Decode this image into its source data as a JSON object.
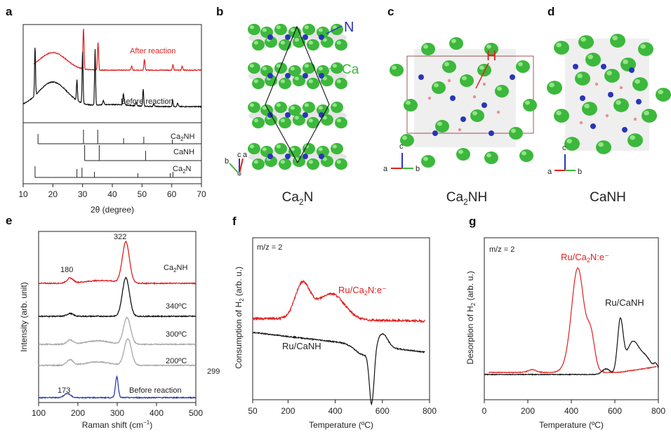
{
  "panels": {
    "a": {
      "label": "a",
      "xlabel": "2θ (degree)",
      "xticks": [
        "10",
        "20",
        "30",
        "40",
        "50",
        "60",
        "70"
      ],
      "after": "After reaction",
      "before": "Before reaction",
      "refs": [
        {
          "text": "Ca",
          "sub": "2",
          "tail": "NH"
        },
        {
          "text": "CaNH",
          "sub": "",
          "tail": ""
        },
        {
          "text": "Ca",
          "sub": "2",
          "tail": "N"
        }
      ]
    },
    "b": {
      "label": "b",
      "name_main": "Ca",
      "name_sub": "2",
      "name_tail": "N",
      "atom_n": "N",
      "atom_ca": "Ca",
      "ax_b": "b",
      "ax_c": "c",
      "ax_a": "a"
    },
    "c": {
      "label": "c",
      "name_main": "Ca",
      "name_sub": "2",
      "name_tail": "NH",
      "atom_h": "H",
      "ax_c": "c",
      "ax_a": "a",
      "ax_b": "b"
    },
    "d": {
      "label": "d",
      "name": "CaNH",
      "ax_c": "c",
      "ax_a": "a",
      "ax_b": "b"
    },
    "e": {
      "label": "e",
      "ylabel": "Intensity (arb. unit)",
      "xlabel_main": "Raman shift (cm",
      "xlabel_sup": "−1",
      "xlabel_tail": ")",
      "xticks": [
        "100",
        "200",
        "300",
        "400",
        "500"
      ],
      "traces": [
        {
          "name_main": "Ca",
          "name_sub": "2",
          "name_tail": "NH",
          "color": "#e02020"
        },
        {
          "name_main": "340ºC",
          "name_sub": "",
          "name_tail": "",
          "color": "#111111"
        },
        {
          "name_main": "300ºC",
          "name_sub": "",
          "name_tail": "",
          "color": "#a6a6a6"
        },
        {
          "name_main": "200ºC",
          "name_sub": "",
          "name_tail": "",
          "color": "#a6a6a6"
        },
        {
          "name_main": "Before reaction",
          "name_sub": "",
          "name_tail": "",
          "color": "#2b3bb0"
        }
      ],
      "peak_322": "322",
      "peak_180": "180",
      "peak_299": "299",
      "peak_173": "173"
    },
    "f": {
      "label": "f",
      "mz": "m/z = 2",
      "ylabel_main": "Consumption of H",
      "ylabel_sub": "2",
      "ylabel_tail": " (arb. u.)",
      "xlabel": "Temperature  (ºC)",
      "xticks": [
        "50",
        "200",
        "400",
        "600",
        "800"
      ],
      "red_main": "Ru/Ca",
      "red_sub": "2",
      "red_tail": "N:e⁻",
      "black": "Ru/CaNH"
    },
    "g": {
      "label": "g",
      "mz": "m/z = 2",
      "ylabel_main": "Desorption of H",
      "ylabel_sub": "2",
      "ylabel_tail": " (arb. u.)",
      "xlabel": "Temperature  (ºC)",
      "xticks": [
        "0",
        "200",
        "400",
        "600",
        "800"
      ],
      "red_main": "Ru/Ca",
      "red_sub": "2",
      "red_tail": "N:e⁻",
      "black": "Ru/CaNH"
    }
  },
  "colors": {
    "red": "#e02020",
    "black": "#111111",
    "grey": "#a6a6a6",
    "blue": "#2b3bb0",
    "green": "#3cb83c",
    "nitrogen": "#2a35b8"
  },
  "chart_data": [
    {
      "type": "line",
      "panel": "a",
      "xlabel": "2θ (degree)",
      "xlim": [
        10,
        70
      ],
      "series": [
        {
          "name": "After reaction",
          "peaks_2theta": [
            20,
            30.3,
            35.2,
            46.5,
            50.8,
            60.4,
            63.5
          ]
        },
        {
          "name": "Before reaction",
          "peaks_2theta": [
            14,
            20,
            28.1,
            30,
            34.2,
            43.7,
            50.4,
            60.3
          ]
        }
      ],
      "reference_patterns": [
        {
          "name": "Ca2NH",
          "lines": [
            15,
            30.3,
            35.1,
            43.8,
            50.6,
            60.2
          ]
        },
        {
          "name": "CaNH",
          "lines": [
            30.7,
            35.6,
            51.2
          ]
        },
        {
          "name": "Ca2N",
          "lines": [
            14,
            28.1,
            29.8,
            34,
            48.6,
            59.5,
            60.4
          ]
        }
      ]
    },
    {
      "type": "line",
      "panel": "e",
      "xlabel": "Raman shift (cm−1)",
      "ylabel": "Intensity (arb. unit)",
      "xlim": [
        100,
        500
      ],
      "series": [
        {
          "name": "Ca2NH",
          "peaks": [
            180,
            322
          ]
        },
        {
          "name": "340ºC",
          "peaks": [
            180,
            322
          ]
        },
        {
          "name": "300ºC",
          "peaks": [
            180,
            325
          ]
        },
        {
          "name": "200ºC",
          "peaks": [
            180,
            327
          ]
        },
        {
          "name": "Before reaction",
          "peaks": [
            173,
            299
          ]
        }
      ]
    },
    {
      "type": "line",
      "panel": "f",
      "xlabel": "Temperature  (ºC)",
      "ylabel": "Consumption of H2 (arb. u.)",
      "xlim": [
        50,
        800
      ],
      "series": [
        {
          "name": "Ru/Ca2N:e⁻",
          "features_C": [
            260,
            390
          ]
        },
        {
          "name": "Ru/CaNH",
          "features_C": [
            555
          ]
        }
      ]
    },
    {
      "type": "line",
      "panel": "g",
      "xlabel": "Temperature  (ºC)",
      "ylabel": "Desorption of H2 (arb. u.)",
      "xlim": [
        0,
        800
      ],
      "series": [
        {
          "name": "Ru/Ca2N:e⁻",
          "features_C": [
            220,
            435
          ]
        },
        {
          "name": "Ru/CaNH",
          "features_C": [
            560,
            625,
            670
          ]
        }
      ]
    }
  ]
}
